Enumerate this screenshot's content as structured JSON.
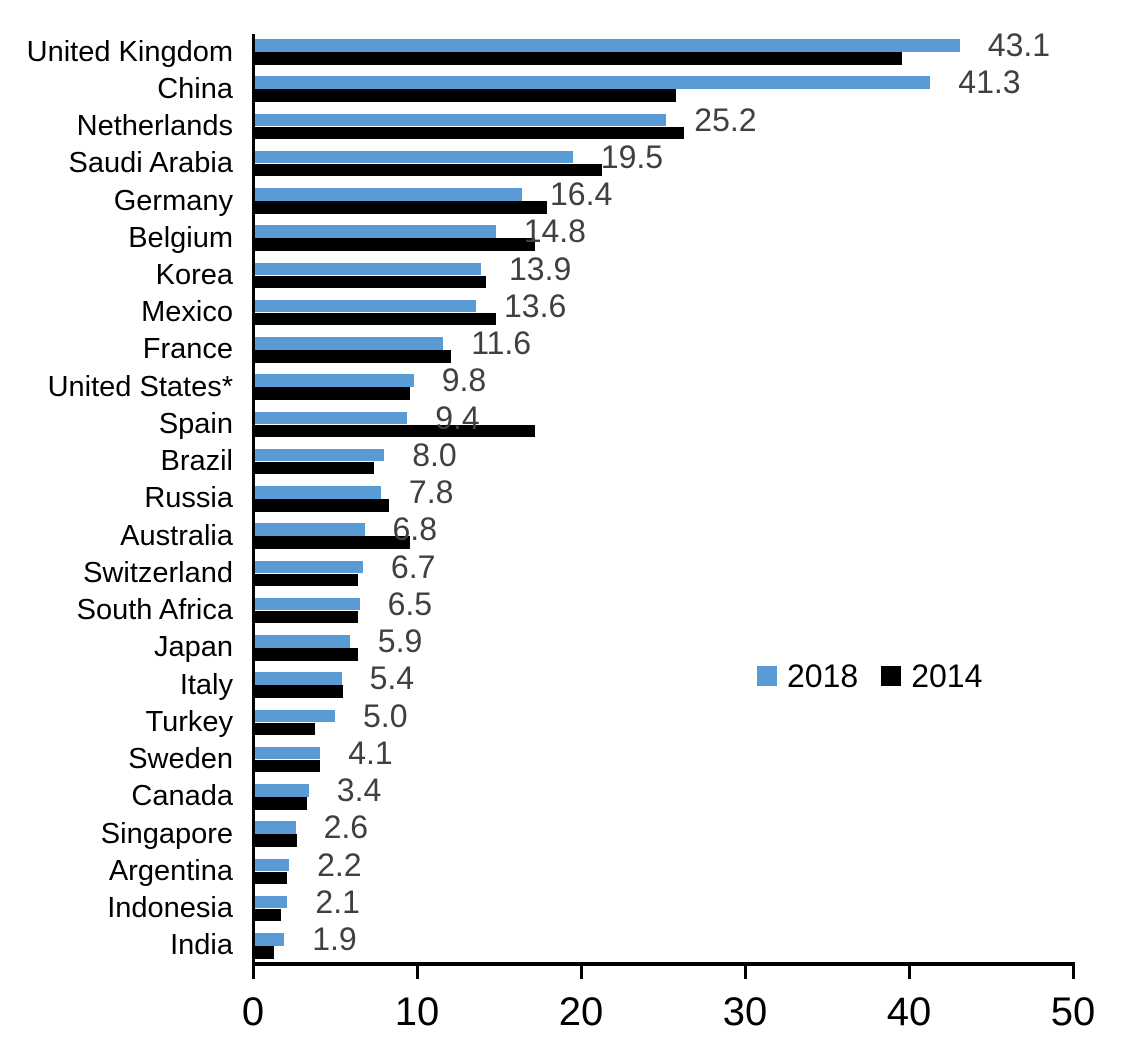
{
  "chart_data": {
    "type": "bar",
    "orientation": "horizontal",
    "title": "",
    "xlabel": "",
    "ylabel": "",
    "xlim": [
      0,
      50
    ],
    "x_ticks": [
      "0",
      "10",
      "20",
      "30",
      "40",
      "50"
    ],
    "grid": false,
    "legend_position": "center-right",
    "categories": [
      "United Kingdom",
      "China",
      "Netherlands",
      "Saudi Arabia",
      "Germany",
      "Belgium",
      "Korea",
      "Mexico",
      "France",
      "United States*",
      "Spain",
      "Brazil",
      "Russia",
      "Australia",
      "Switzerland",
      "South Africa",
      "Japan",
      "Italy",
      "Turkey",
      "Sweden",
      "Canada",
      "Singapore",
      "Argentina",
      "Indonesia",
      "India"
    ],
    "series": [
      {
        "name": "2018",
        "color": "#5B9BD5",
        "values": [
          43.1,
          41.3,
          25.2,
          19.5,
          16.4,
          14.8,
          13.9,
          13.6,
          11.6,
          9.8,
          9.4,
          8.0,
          7.8,
          6.8,
          6.7,
          6.5,
          5.9,
          5.4,
          5.0,
          4.1,
          3.4,
          2.6,
          2.2,
          2.1,
          1.9
        ],
        "value_labels": [
          "43.1",
          "41.3",
          "25.2",
          "19.5",
          "16.4",
          "14.8",
          "13.9",
          "13.6",
          "11.6",
          "9.8",
          "9.4",
          "8.0",
          "7.8",
          "6.8",
          "6.7",
          "6.5",
          "5.9",
          "5.4",
          "5.0",
          "4.1",
          "3.4",
          "2.6",
          "2.2",
          "2.1",
          "1.9"
        ],
        "labels_shown": true
      },
      {
        "name": "2014",
        "color": "#000000",
        "values": [
          39.6,
          25.8,
          26.3,
          21.3,
          17.9,
          17.2,
          14.2,
          14.8,
          12.1,
          9.6,
          17.2,
          7.4,
          8.3,
          9.6,
          6.4,
          6.4,
          6.4,
          5.5,
          3.8,
          4.1,
          3.3,
          2.7,
          2.1,
          1.7,
          1.3
        ],
        "labels_shown": false
      }
    ],
    "label_color": "#404040",
    "axis_color": "#000000"
  }
}
